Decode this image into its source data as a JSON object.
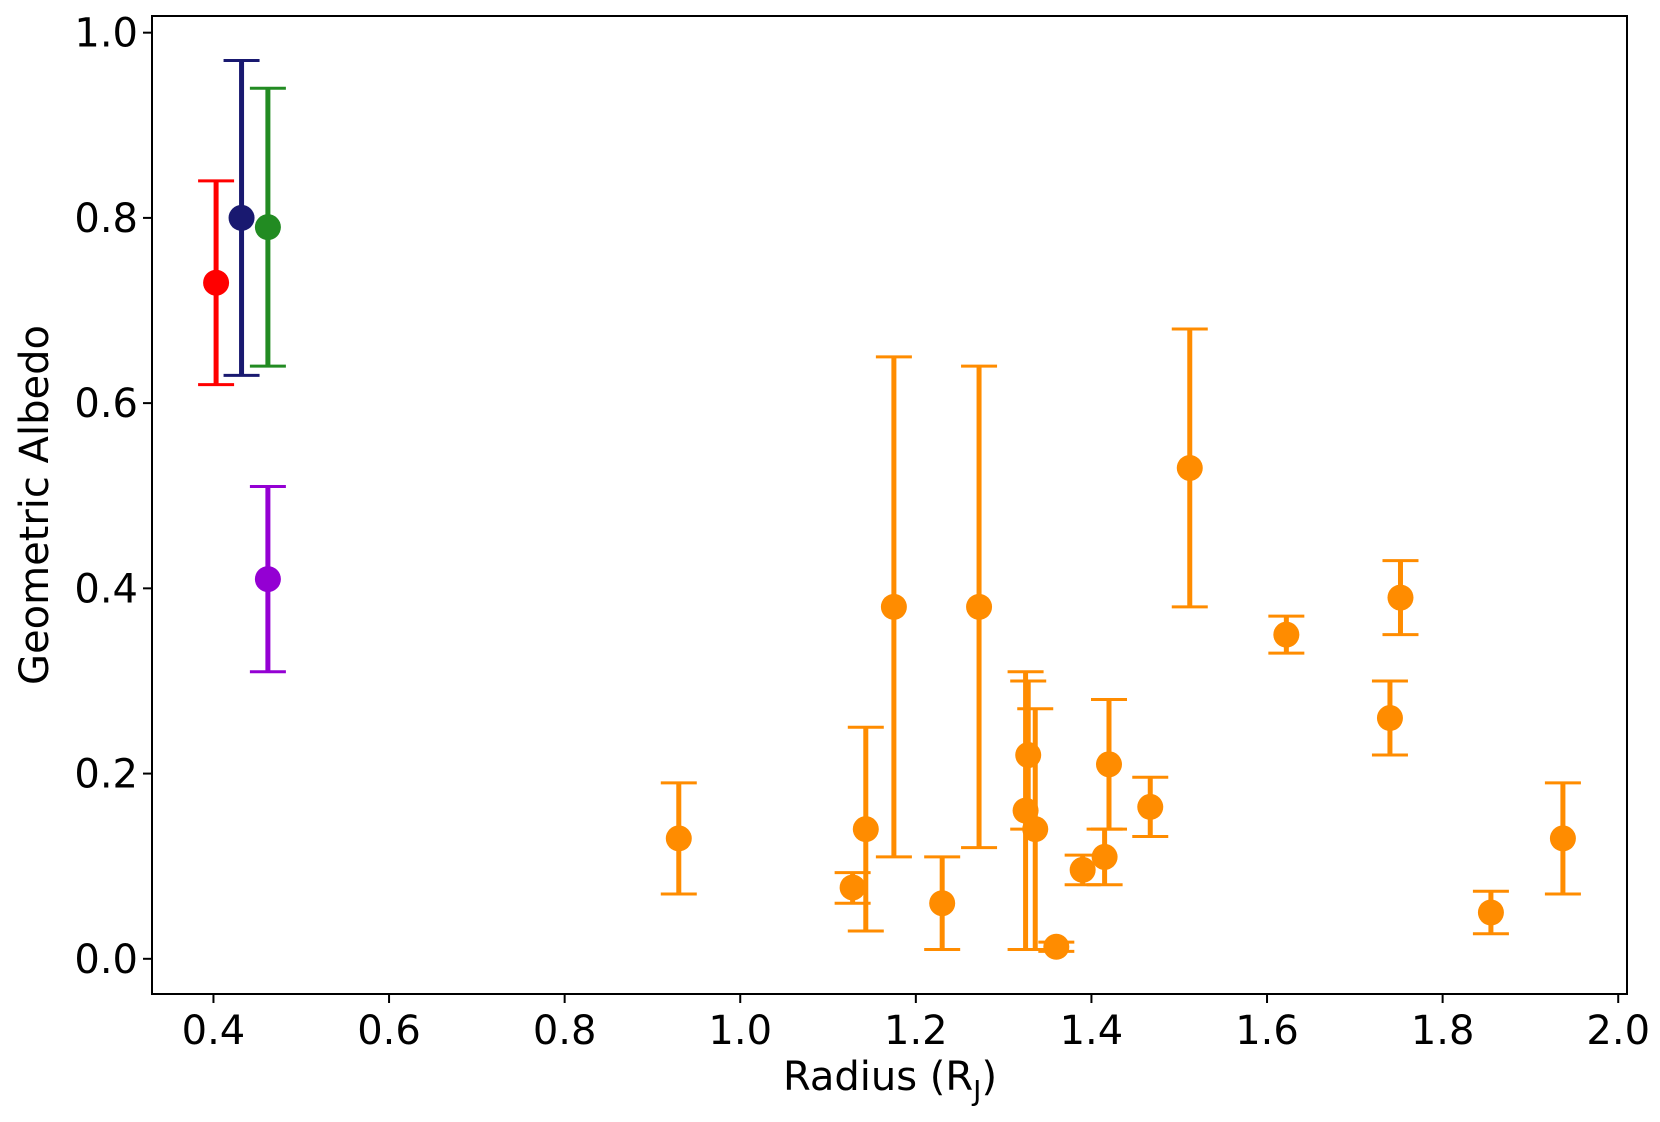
{
  "chart_data": {
    "type": "scatter",
    "xlabel": "Radius (R",
    "xlabel_sub": "J",
    "xlabel_close": ")",
    "ylabel": "Geometric Albedo",
    "xlim": [
      0.33,
      2.01
    ],
    "ylim": [
      -0.038,
      1.018
    ],
    "xticks": [
      0.4,
      0.6,
      0.8,
      1.0,
      1.2,
      1.4,
      1.6,
      1.8,
      2.0
    ],
    "yticks": [
      0.0,
      0.2,
      0.4,
      0.6,
      0.8,
      1.0
    ],
    "grid": false,
    "legend": "none",
    "points": [
      {
        "x": 0.403,
        "y": 0.73,
        "ylo": 0.62,
        "yhi": 0.84,
        "color": "#ff0000"
      },
      {
        "x": 0.432,
        "y": 0.8,
        "ylo": 0.63,
        "yhi": 0.97,
        "color": "#191970"
      },
      {
        "x": 0.462,
        "y": 0.79,
        "ylo": 0.64,
        "yhi": 0.94,
        "color": "#228b22"
      },
      {
        "x": 0.462,
        "y": 0.41,
        "ylo": 0.31,
        "yhi": 0.51,
        "color": "#9400d3"
      },
      {
        "x": 0.93,
        "y": 0.13,
        "ylo": 0.07,
        "yhi": 0.19,
        "color": "#ff8c00"
      },
      {
        "x": 1.128,
        "y": 0.077,
        "ylo": 0.06,
        "yhi": 0.093,
        "color": "#ff8c00"
      },
      {
        "x": 1.143,
        "y": 0.14,
        "ylo": 0.03,
        "yhi": 0.25,
        "color": "#ff8c00"
      },
      {
        "x": 1.175,
        "y": 0.38,
        "ylo": 0.11,
        "yhi": 0.65,
        "color": "#ff8c00"
      },
      {
        "x": 1.23,
        "y": 0.06,
        "ylo": 0.01,
        "yhi": 0.11,
        "color": "#ff8c00"
      },
      {
        "x": 1.272,
        "y": 0.38,
        "ylo": 0.12,
        "yhi": 0.64,
        "color": "#ff8c00"
      },
      {
        "x": 1.325,
        "y": 0.16,
        "ylo": 0.01,
        "yhi": 0.31,
        "color": "#ff8c00"
      },
      {
        "x": 1.328,
        "y": 0.22,
        "ylo": 0.14,
        "yhi": 0.3,
        "color": "#ff8c00"
      },
      {
        "x": 1.336,
        "y": 0.14,
        "ylo": 0.01,
        "yhi": 0.27,
        "color": "#ff8c00"
      },
      {
        "x": 1.36,
        "y": 0.013,
        "ylo": 0.008,
        "yhi": 0.018,
        "color": "#ff8c00"
      },
      {
        "x": 1.39,
        "y": 0.096,
        "ylo": 0.08,
        "yhi": 0.112,
        "color": "#ff8c00"
      },
      {
        "x": 1.415,
        "y": 0.11,
        "ylo": 0.08,
        "yhi": 0.14,
        "color": "#ff8c00"
      },
      {
        "x": 1.42,
        "y": 0.21,
        "ylo": 0.14,
        "yhi": 0.28,
        "color": "#ff8c00"
      },
      {
        "x": 1.467,
        "y": 0.164,
        "ylo": 0.132,
        "yhi": 0.196,
        "color": "#ff8c00"
      },
      {
        "x": 1.512,
        "y": 0.53,
        "ylo": 0.38,
        "yhi": 0.68,
        "color": "#ff8c00"
      },
      {
        "x": 1.622,
        "y": 0.35,
        "ylo": 0.33,
        "yhi": 0.37,
        "color": "#ff8c00"
      },
      {
        "x": 1.74,
        "y": 0.26,
        "ylo": 0.22,
        "yhi": 0.3,
        "color": "#ff8c00"
      },
      {
        "x": 1.752,
        "y": 0.39,
        "ylo": 0.35,
        "yhi": 0.43,
        "color": "#ff8c00"
      },
      {
        "x": 1.855,
        "y": 0.05,
        "ylo": 0.027,
        "yhi": 0.073,
        "color": "#ff8c00"
      },
      {
        "x": 1.937,
        "y": 0.13,
        "ylo": 0.07,
        "yhi": 0.19,
        "color": "#ff8c00"
      }
    ]
  }
}
